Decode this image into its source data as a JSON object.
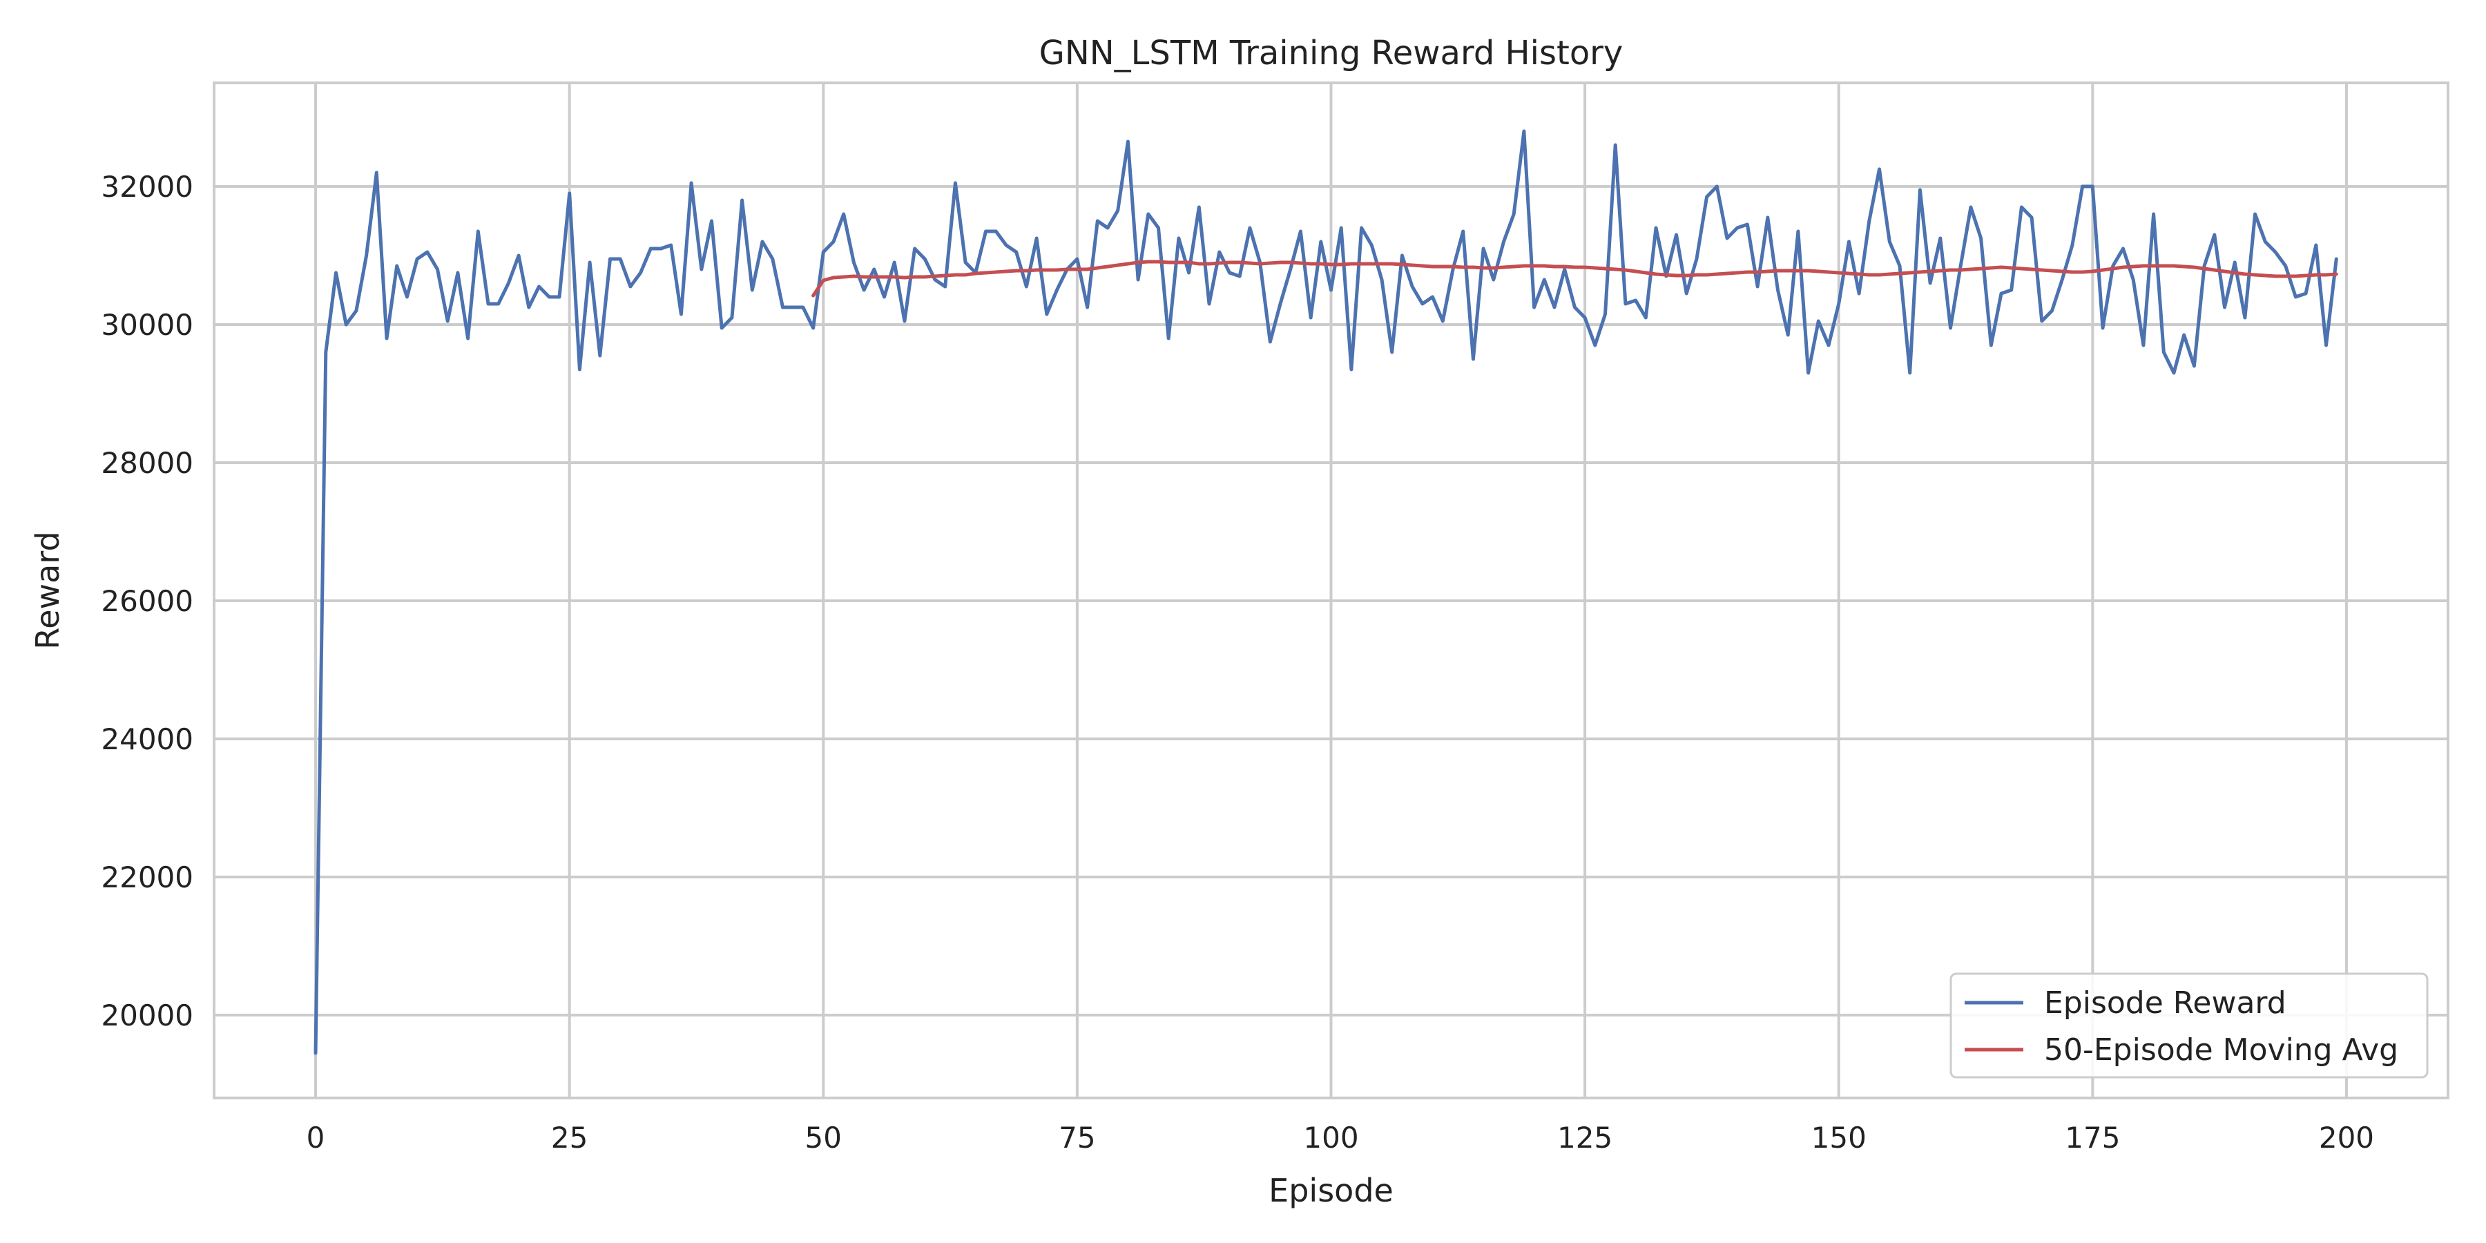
{
  "chart_data": {
    "type": "line",
    "title": "GNN_LSTM Training Reward History",
    "xlabel": "Episode",
    "ylabel": "Reward",
    "xlim": [
      -10,
      210
    ],
    "ylim": [
      18800,
      33500
    ],
    "xticks": [
      0,
      25,
      50,
      75,
      100,
      125,
      150,
      175,
      200
    ],
    "xtick_labels": [
      "0",
      "25",
      "50",
      "75",
      "100",
      "125",
      "150",
      "175",
      "200"
    ],
    "yticks": [
      20000,
      22000,
      24000,
      26000,
      28000,
      30000,
      32000
    ],
    "ytick_labels": [
      "20000",
      "22000",
      "24000",
      "26000",
      "28000",
      "30000",
      "32000"
    ],
    "grid": true,
    "legend_position": "bottom-right",
    "series": [
      {
        "name": "Episode Reward",
        "color": "#4c72b0",
        "x_start": 0,
        "values": [
          19450,
          29600,
          30750,
          30000,
          30200,
          31000,
          32200,
          29800,
          30850,
          30400,
          30950,
          31050,
          30800,
          30050,
          30750,
          29800,
          31350,
          30300,
          30300,
          30600,
          31000,
          30250,
          30550,
          30400,
          30400,
          31900,
          29350,
          30900,
          29550,
          30950,
          30950,
          30550,
          30750,
          31100,
          31100,
          31150,
          30150,
          32050,
          30800,
          31500,
          29950,
          30100,
          31800,
          30500,
          31200,
          30950,
          30250,
          30250,
          30250,
          29950,
          31050,
          31200,
          31600,
          30900,
          30500,
          30800,
          30400,
          30900,
          30050,
          31100,
          30950,
          30650,
          30550,
          32050,
          30900,
          30750,
          31350,
          31350,
          31150,
          31050,
          30550,
          31250,
          30150,
          30500,
          30800,
          30950,
          30250,
          31500,
          31400,
          31650,
          32650,
          30650,
          31600,
          31400,
          29800,
          31250,
          30750,
          31700,
          30300,
          31050,
          30750,
          30700,
          31400,
          30900,
          29750,
          30300,
          30800,
          31350,
          30100,
          31200,
          30500,
          31400,
          29350,
          31400,
          31150,
          30650,
          29600,
          31000,
          30550,
          30300,
          30400,
          30050,
          30800,
          31350,
          29500,
          31100,
          30650,
          31200,
          31600,
          32800,
          30250,
          30650,
          30250,
          30800,
          30250,
          30100,
          29700,
          30150,
          32600,
          30300,
          30350,
          30100,
          31400,
          30700,
          31300,
          30450,
          30950,
          31850,
          32000,
          31250,
          31400,
          31450,
          30550,
          31550,
          30500,
          29850,
          31350,
          29300,
          30050,
          29700,
          30300,
          31200,
          30450,
          31500,
          32250,
          31200,
          30850,
          29300,
          31950,
          30600,
          31250,
          29950,
          30850,
          31700,
          31250,
          29700,
          30450,
          30500,
          31700,
          31550,
          30050,
          30200,
          30650,
          31150,
          32000,
          32000,
          29950,
          30850,
          31100,
          30650,
          29700,
          31600,
          29600,
          29300,
          29850,
          29400,
          30850,
          31300,
          30250,
          30900,
          30100,
          31600,
          31200,
          31050,
          30850,
          30400,
          30450,
          31150,
          29700,
          30950
        ]
      },
      {
        "name": "50-Episode Moving Avg",
        "color": "#c44e52",
        "x_start": 49,
        "values": [
          30420,
          30640,
          30680,
          30690,
          30700,
          30690,
          30690,
          30690,
          30690,
          30680,
          30690,
          30690,
          30700,
          30710,
          30720,
          30720,
          30740,
          30750,
          30760,
          30770,
          30780,
          30780,
          30790,
          30790,
          30790,
          30800,
          30800,
          30800,
          30820,
          30840,
          30860,
          30880,
          30900,
          30910,
          30910,
          30900,
          30900,
          30900,
          30880,
          30880,
          30890,
          30900,
          30900,
          30890,
          30880,
          30890,
          30900,
          30900,
          30890,
          30880,
          30880,
          30870,
          30870,
          30880,
          30880,
          30880,
          30880,
          30880,
          30870,
          30860,
          30850,
          30840,
          30840,
          30840,
          30830,
          30830,
          30820,
          30820,
          30830,
          30840,
          30850,
          30850,
          30850,
          30840,
          30840,
          30830,
          30830,
          30820,
          30810,
          30800,
          30790,
          30770,
          30750,
          30730,
          30720,
          30710,
          30710,
          30720,
          30720,
          30730,
          30740,
          30750,
          30760,
          30760,
          30770,
          30780,
          30780,
          30780,
          30780,
          30770,
          30760,
          30750,
          30740,
          30730,
          30720,
          30720,
          30730,
          30740,
          30750,
          30760,
          30770,
          30780,
          30790,
          30790,
          30800,
          30810,
          30820,
          30830,
          30820,
          30810,
          30800,
          30790,
          30780,
          30770,
          30760,
          30760,
          30770,
          30790,
          30810,
          30830,
          30840,
          30850,
          30850,
          30850,
          30850,
          30840,
          30830,
          30810,
          30790,
          30770,
          30750,
          30730,
          30720,
          30710,
          30700,
          30700,
          30700,
          30710,
          30720,
          30720,
          30730
        ]
      }
    ]
  }
}
